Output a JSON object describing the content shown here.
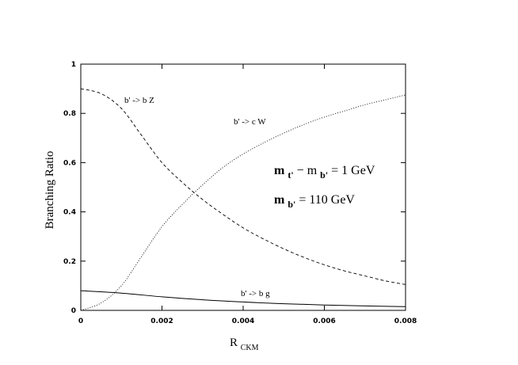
{
  "chart_data": {
    "type": "line",
    "xlabel_main": "R",
    "xlabel_sub": "CKM",
    "ylabel": "Branching Ratio",
    "xlim": [
      0,
      0.008
    ],
    "ylim": [
      0,
      1
    ],
    "x_ticks": [
      0,
      0.002,
      0.004,
      0.006,
      0.008
    ],
    "x_tick_labels": [
      "0",
      "0.002",
      "0.004",
      "0.006",
      "0.008"
    ],
    "y_ticks": [
      0,
      0.2,
      0.4,
      0.6,
      0.8,
      1
    ],
    "y_tick_labels": [
      "0",
      "0.2",
      "0.4",
      "0.6",
      "0.8",
      "1"
    ],
    "grid": false,
    "series": [
      {
        "name": "b' -> b Z",
        "style": "dashed",
        "x": [
          0,
          0.0005,
          0.001,
          0.0015,
          0.002,
          0.0025,
          0.003,
          0.0035,
          0.004,
          0.0045,
          0.005,
          0.0055,
          0.006,
          0.0065,
          0.007,
          0.0075,
          0.008
        ],
        "y": [
          0.9,
          0.88,
          0.82,
          0.71,
          0.6,
          0.52,
          0.45,
          0.39,
          0.335,
          0.29,
          0.25,
          0.215,
          0.185,
          0.16,
          0.14,
          0.12,
          0.105
        ]
      },
      {
        "name": "b' -> c W",
        "style": "dotted",
        "x": [
          0,
          0.0005,
          0.001,
          0.0015,
          0.002,
          0.0025,
          0.003,
          0.0035,
          0.004,
          0.0045,
          0.005,
          0.0055,
          0.006,
          0.0065,
          0.007,
          0.0075,
          0.008
        ],
        "y": [
          0.0,
          0.03,
          0.1,
          0.22,
          0.34,
          0.43,
          0.51,
          0.58,
          0.635,
          0.68,
          0.72,
          0.755,
          0.785,
          0.81,
          0.835,
          0.855,
          0.875
        ]
      },
      {
        "name": "b' -> b g",
        "style": "solid",
        "x": [
          0,
          0.001,
          0.002,
          0.003,
          0.004,
          0.005,
          0.006,
          0.007,
          0.008
        ],
        "y": [
          0.08,
          0.07,
          0.055,
          0.043,
          0.034,
          0.027,
          0.022,
          0.018,
          0.015
        ]
      }
    ],
    "series_label_text": {
      "bz": "b' -> b Z",
      "cw": "b' -> c W",
      "bg": "b' -> b g"
    },
    "annotations": {
      "line1_m1": "m",
      "line1_sub1": "t'",
      "line1_mid": " − m",
      "line1_sub2": "b'",
      "line1_end": " = 1 GeV",
      "line2_m": "m",
      "line2_sub": "b'",
      "line2_end": " = 110  GeV"
    }
  }
}
